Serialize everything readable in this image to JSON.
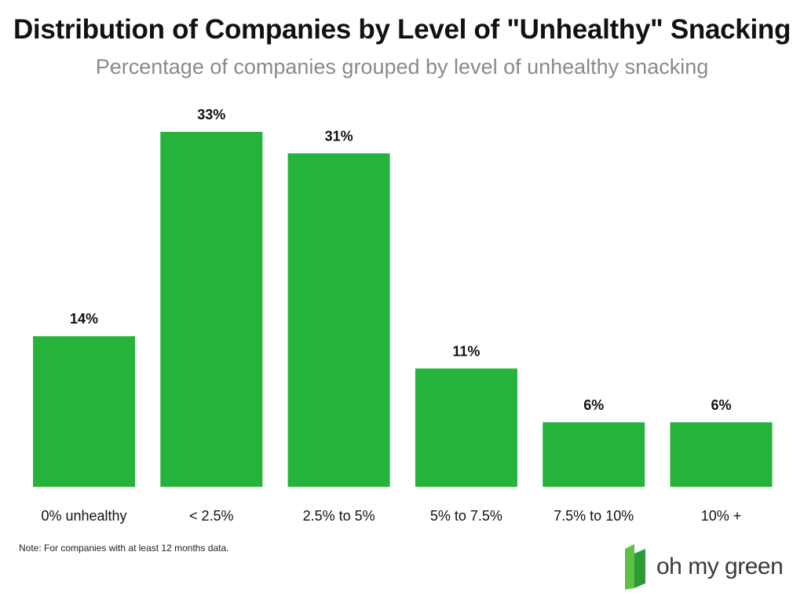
{
  "chart_data": {
    "type": "bar",
    "title": "Distribution of Companies by Level of \"Unhealthy\" Snacking",
    "subtitle": "Percentage of companies grouped by level of unhealthy snacking",
    "categories": [
      "0% unhealthy",
      "< 2.5%",
      "2.5% to 5%",
      "5% to 7.5%",
      "7.5% to 10%",
      "10% +"
    ],
    "values": [
      14,
      33,
      31,
      11,
      6,
      6
    ],
    "value_labels": [
      "14%",
      "33%",
      "31%",
      "11%",
      "6%",
      "6%"
    ],
    "ylim": [
      0,
      35
    ],
    "grid": false,
    "bar_color": "#26b33b",
    "note": "Note: For companies with at least 12 months data."
  },
  "brand": {
    "name": "oh my green",
    "logo_icon": "oh-my-green-logo-icon",
    "logo_colors": [
      "#5cc043",
      "#2e9a35"
    ]
  }
}
